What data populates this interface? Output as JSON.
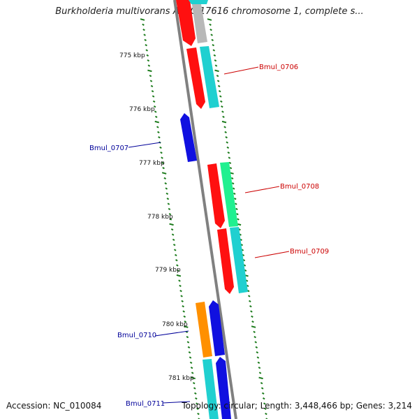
{
  "title": "Burkholderia multivorans ATCC 17616 chromosome 1, complete s...",
  "accession": "Accession: NC_010084",
  "summary": "Topology: circular; Length: 3,448,466 bp; Genes: 3,214",
  "scale_labels": [
    "775 kbp",
    "776 kbp",
    "777 kbp",
    "778 kbp",
    "779 kbp",
    "780 kbp",
    "781 kbp"
  ],
  "gene_labels": {
    "bmul_0706": "Bmul_0706",
    "bmul_0707": "Bmul_0707",
    "bmul_0708": "Bmul_0708",
    "bmul_0709": "Bmul_0709",
    "bmul_0710": "Bmul_0710",
    "bmul_0711": "Bmul_0711"
  },
  "colors": {
    "backbone": "#808080",
    "tick_green": "#1a7a1a",
    "gene_red": "#ff1010",
    "gene_cyan": "#20d0d0",
    "gene_blue": "#1010e0",
    "gene_gray": "#b8b8b8",
    "gene_green": "#20f090",
    "gene_orange": "#ff9000",
    "label_forward": "#cc0000",
    "label_reverse": "#000099"
  }
}
